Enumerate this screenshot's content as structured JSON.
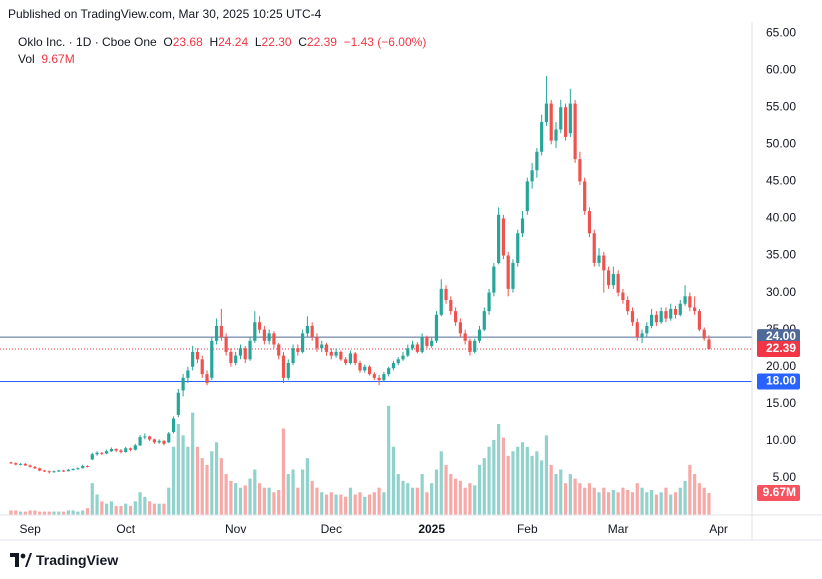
{
  "header": {
    "published": "Published on TradingView.com, Mar 30, 2025 10:25 UTC-4"
  },
  "legend": {
    "symbol": "Oklo Inc. · 1D · Cboe One",
    "items": [
      "O",
      "23.68",
      "H",
      "24.24",
      "L",
      "22.30",
      "C",
      "22.39",
      "−1.43 (−6.00%)"
    ],
    "volume_label": "Vol",
    "volume_value": "9.67M"
  },
  "footer": {
    "brand": "TradingView"
  },
  "chart_data": {
    "type": "candlestick",
    "up_color": "#26a69a",
    "down_color": "#ef5350",
    "xlim": [
      -2.3,
      155
    ],
    "xticks": [
      {
        "value": 4,
        "label": "Sep"
      },
      {
        "value": 24,
        "label": "Oct"
      },
      {
        "value": 47,
        "label": "Nov"
      },
      {
        "value": 67,
        "label": "Dec"
      },
      {
        "value": 88,
        "label": "2025"
      },
      {
        "value": 108,
        "label": "Feb"
      },
      {
        "value": 127,
        "label": "Mar"
      },
      {
        "value": 148,
        "label": "Apr"
      }
    ],
    "ylim": [
      0,
      66.5
    ],
    "yticks": [
      {
        "value": 5,
        "label": "5.00"
      },
      {
        "value": 10,
        "label": "10.00"
      },
      {
        "value": 15,
        "label": "15.00"
      },
      {
        "value": 20,
        "label": "20.00"
      },
      {
        "value": 25,
        "label": "25.00"
      },
      {
        "value": 30,
        "label": "30.00"
      },
      {
        "value": 35,
        "label": "35.00"
      },
      {
        "value": 40,
        "label": "40.00"
      },
      {
        "value": 45,
        "label": "45.00"
      },
      {
        "value": 50,
        "label": "50.00"
      },
      {
        "value": 55,
        "label": "55.00"
      },
      {
        "value": 60,
        "label": "60.00"
      },
      {
        "value": 65,
        "label": "65.00"
      }
    ],
    "y2lim": [
      0,
      216.7
    ],
    "grid": true,
    "price_lines": [
      {
        "value": 24,
        "label": "24.00",
        "color": "#4f6a98"
      },
      {
        "value": 18,
        "label": "18.00",
        "color": "#2962ff"
      }
    ],
    "last_price": {
      "value": 22.39,
      "label": "22.39",
      "color": "#f23645"
    },
    "last_volume_label": "9.67M",
    "last_volume_color": "#f7525f",
    "open": [
      7.1,
      7.0,
      6.8,
      6.9,
      6.7,
      6.5,
      6.3,
      6.0,
      5.9,
      5.8,
      5.9,
      6.0,
      5.9,
      6.1,
      6.2,
      6.3,
      6.6,
      7.5,
      8.2,
      8.4,
      8.3,
      8.6,
      8.9,
      8.7,
      8.5,
      9.0,
      8.8,
      9.4,
      10.5,
      10.6,
      10.2,
      9.8,
      10.0,
      9.8,
      11.2,
      13.5,
      16.8,
      18.5,
      20.0,
      22.0,
      21.0,
      19.0,
      18.5,
      23.5,
      25.5,
      24.0,
      22.0,
      20.5,
      21.5,
      22.5,
      21.0,
      23.5,
      26.0,
      25.0,
      23.5,
      24.5,
      23.0,
      21.5,
      18.5,
      20.5,
      22.5,
      22.0,
      24.5,
      25.5,
      24.0,
      22.5,
      23.0,
      22.0,
      21.5,
      22.0,
      21.0,
      20.5,
      21.8,
      20.5,
      19.5,
      20.0,
      19.0,
      18.5,
      18.2,
      19.0,
      19.8,
      20.5,
      21.0,
      21.5,
      22.5,
      23.0,
      22.0,
      24.0,
      22.8,
      23.5,
      27.0,
      30.5,
      29.0,
      27.5,
      26.0,
      24.5,
      23.5,
      22.0,
      23.5,
      25.0,
      27.5,
      30.0,
      34.0,
      40.0,
      35.0,
      30.5,
      34.0,
      38.0,
      41.0,
      45.0,
      46.5,
      49.0,
      53.0,
      55.5,
      50.5,
      52.0,
      55.0,
      51.5,
      55.5,
      48.0,
      45.0,
      41.0,
      38.0,
      34.0,
      35.0,
      33.0,
      31.0,
      32.5,
      30.0,
      29.0,
      27.5,
      26.0,
      24.0,
      24.5,
      25.5,
      27.0,
      26.0,
      27.5,
      26.5,
      27.8,
      27.0,
      28.5,
      29.5,
      28.0,
      27.5,
      25.0,
      23.68
    ],
    "high": [
      7.2,
      7.1,
      7.0,
      7.0,
      6.8,
      6.6,
      6.4,
      6.1,
      6.0,
      6.0,
      6.1,
      6.1,
      6.2,
      6.3,
      6.4,
      6.8,
      6.7,
      8.4,
      8.6,
      8.5,
      8.8,
      9.1,
      9.0,
      8.9,
      9.2,
      9.1,
      9.6,
      10.8,
      11.0,
      10.7,
      10.3,
      10.2,
      10.1,
      11.2,
      13.3,
      17.0,
      19.0,
      20.0,
      22.8,
      22.5,
      21.5,
      19.5,
      24.0,
      26.5,
      27.8,
      24.5,
      22.5,
      22.0,
      23.0,
      22.8,
      24.0,
      27.5,
      26.8,
      25.5,
      25.0,
      24.8,
      23.2,
      22.0,
      21.0,
      23.0,
      23.0,
      25.0,
      26.8,
      26.0,
      24.5,
      23.5,
      23.2,
      22.5,
      22.5,
      22.2,
      21.3,
      22.2,
      22.0,
      20.8,
      20.3,
      20.2,
      19.3,
      18.9,
      19.3,
      20.0,
      20.8,
      21.3,
      22.0,
      23.0,
      23.5,
      23.3,
      24.5,
      24.2,
      24.0,
      27.5,
      31.8,
      31.0,
      29.5,
      28.0,
      26.5,
      25.0,
      23.8,
      23.8,
      25.5,
      28.0,
      30.5,
      34.0,
      41.5,
      40.5,
      35.5,
      34.5,
      38.5,
      41.0,
      45.5,
      47.5,
      49.5,
      54.0,
      59.2,
      56.0,
      53.0,
      56.0,
      55.5,
      57.5,
      56.0,
      49.0,
      45.5,
      41.5,
      38.5,
      36.0,
      35.5,
      33.5,
      33.5,
      33.0,
      30.5,
      29.5,
      28.0,
      26.5,
      25.0,
      26.0,
      27.8,
      27.5,
      28.0,
      28.0,
      28.5,
      28.2,
      29.0,
      31.0,
      30.0,
      29.5,
      27.8,
      25.3,
      24.24
    ],
    "low": [
      6.9,
      6.7,
      6.7,
      6.6,
      6.4,
      6.2,
      5.9,
      5.8,
      5.6,
      5.7,
      5.8,
      5.8,
      5.9,
      6.0,
      6.1,
      6.3,
      6.4,
      7.4,
      8.0,
      8.1,
      8.2,
      8.5,
      8.5,
      8.3,
      8.4,
      8.6,
      8.7,
      9.3,
      10.2,
      10.0,
      9.6,
      9.6,
      9.4,
      9.7,
      11.0,
      13.2,
      16.0,
      17.8,
      19.5,
      20.5,
      18.5,
      17.5,
      18.2,
      23.0,
      23.5,
      21.5,
      20.0,
      20.2,
      21.0,
      20.5,
      20.8,
      23.2,
      24.5,
      23.0,
      23.0,
      22.5,
      21.0,
      17.8,
      18.2,
      20.2,
      21.5,
      21.8,
      24.0,
      23.5,
      22.0,
      22.0,
      21.5,
      21.0,
      21.2,
      20.8,
      20.2,
      20.3,
      20.2,
      19.2,
      19.2,
      18.8,
      18.2,
      17.5,
      18.0,
      18.7,
      19.5,
      20.2,
      20.8,
      21.3,
      22.2,
      21.8,
      21.8,
      22.5,
      22.5,
      23.2,
      26.8,
      28.5,
      27.0,
      25.5,
      24.0,
      23.0,
      21.5,
      21.8,
      23.2,
      24.8,
      27.0,
      29.5,
      33.8,
      34.5,
      29.5,
      30.0,
      33.5,
      37.5,
      40.5,
      44.0,
      45.5,
      48.5,
      52.5,
      50.0,
      49.5,
      51.5,
      50.5,
      51.0,
      47.5,
      44.5,
      40.5,
      37.5,
      33.5,
      33.5,
      30.0,
      30.5,
      30.5,
      29.5,
      28.5,
      27.0,
      25.5,
      23.5,
      23.2,
      24.0,
      25.2,
      25.5,
      25.8,
      26.0,
      26.2,
      26.5,
      26.8,
      28.2,
      27.5,
      27.0,
      24.8,
      23.5,
      22.3
    ],
    "close": [
      7.0,
      6.8,
      6.9,
      6.7,
      6.5,
      6.3,
      6.0,
      5.9,
      5.8,
      5.9,
      6.0,
      5.9,
      6.1,
      6.2,
      6.3,
      6.6,
      6.5,
      8.2,
      8.4,
      8.3,
      8.6,
      8.9,
      8.7,
      8.5,
      9.0,
      8.8,
      9.4,
      10.5,
      10.6,
      10.2,
      9.8,
      10.0,
      9.6,
      11.0,
      13.0,
      16.5,
      18.5,
      19.5,
      22.0,
      21.0,
      19.0,
      17.8,
      23.5,
      25.5,
      24.0,
      22.0,
      20.5,
      21.5,
      22.5,
      21.0,
      23.5,
      26.0,
      25.0,
      23.5,
      24.5,
      23.0,
      21.5,
      18.5,
      20.5,
      22.5,
      22.0,
      24.5,
      25.5,
      24.0,
      22.5,
      23.0,
      22.0,
      21.5,
      22.0,
      21.0,
      20.5,
      21.8,
      20.5,
      19.5,
      20.0,
      19.0,
      18.5,
      18.2,
      19.0,
      19.8,
      20.5,
      21.0,
      21.5,
      22.5,
      23.0,
      22.0,
      24.0,
      22.8,
      23.5,
      27.0,
      30.5,
      29.0,
      27.5,
      26.0,
      24.5,
      23.5,
      22.0,
      23.5,
      25.0,
      27.5,
      30.0,
      33.5,
      40.5,
      35.0,
      30.5,
      34.0,
      38.0,
      40.0,
      45.0,
      46.5,
      49.0,
      53.0,
      55.5,
      50.5,
      52.0,
      55.0,
      51.0,
      55.5,
      48.0,
      45.0,
      41.0,
      38.0,
      34.0,
      35.0,
      33.0,
      31.0,
      32.5,
      30.0,
      29.0,
      27.5,
      26.0,
      24.0,
      24.5,
      25.5,
      27.0,
      26.0,
      27.5,
      26.5,
      27.8,
      27.0,
      28.5,
      29.5,
      28.0,
      27.5,
      25.0,
      23.82,
      22.39
    ],
    "volume": [
      2,
      2,
      1.5,
      1.5,
      2,
      2,
      1.5,
      1.5,
      1.5,
      1.5,
      1.5,
      1.5,
      2,
      2,
      1.5,
      2,
      3,
      14,
      9,
      6,
      5,
      6,
      4,
      4,
      5,
      4,
      6,
      10,
      8,
      6,
      5,
      5,
      5,
      12,
      30,
      40,
      35,
      30,
      45,
      30,
      25,
      22,
      28,
      32,
      25,
      18,
      15,
      14,
      12,
      13,
      16,
      20,
      14,
      12,
      12,
      10,
      11,
      38,
      18,
      20,
      12,
      20,
      25,
      15,
      12,
      10,
      9,
      10,
      9,
      9,
      8,
      12,
      9,
      10,
      8,
      9,
      10,
      12,
      10,
      48,
      30,
      18,
      15,
      14,
      12,
      12,
      18,
      10,
      14,
      20,
      28,
      22,
      18,
      16,
      15,
      12,
      14,
      13,
      22,
      25,
      30,
      33,
      40,
      34,
      26,
      28,
      30,
      32,
      30,
      26,
      28,
      24,
      35,
      22,
      18,
      20,
      14,
      18,
      16,
      14,
      12,
      14,
      12,
      10,
      12,
      10,
      11,
      10,
      12,
      11,
      10,
      14,
      12,
      10,
      11,
      9,
      10,
      12,
      9,
      10,
      12,
      15,
      22,
      18,
      14,
      12,
      9.67
    ]
  }
}
